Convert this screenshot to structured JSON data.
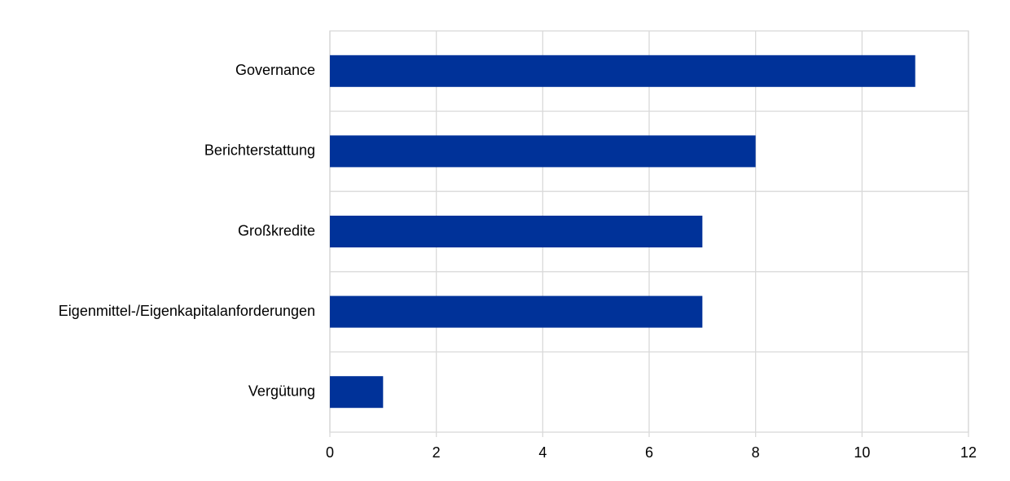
{
  "chart_data": {
    "type": "hbar",
    "categories": [
      "Governance",
      "Berichterstattung",
      "Großkredite",
      "Eigenmittel-/Eigenkapitalanforderungen",
      "Vergütung"
    ],
    "values": [
      11,
      8,
      7,
      7,
      1
    ],
    "color": "#003299",
    "xlim": [
      0,
      12
    ],
    "xticks": [
      0,
      2,
      4,
      6,
      8,
      10,
      12
    ],
    "grid": true
  }
}
